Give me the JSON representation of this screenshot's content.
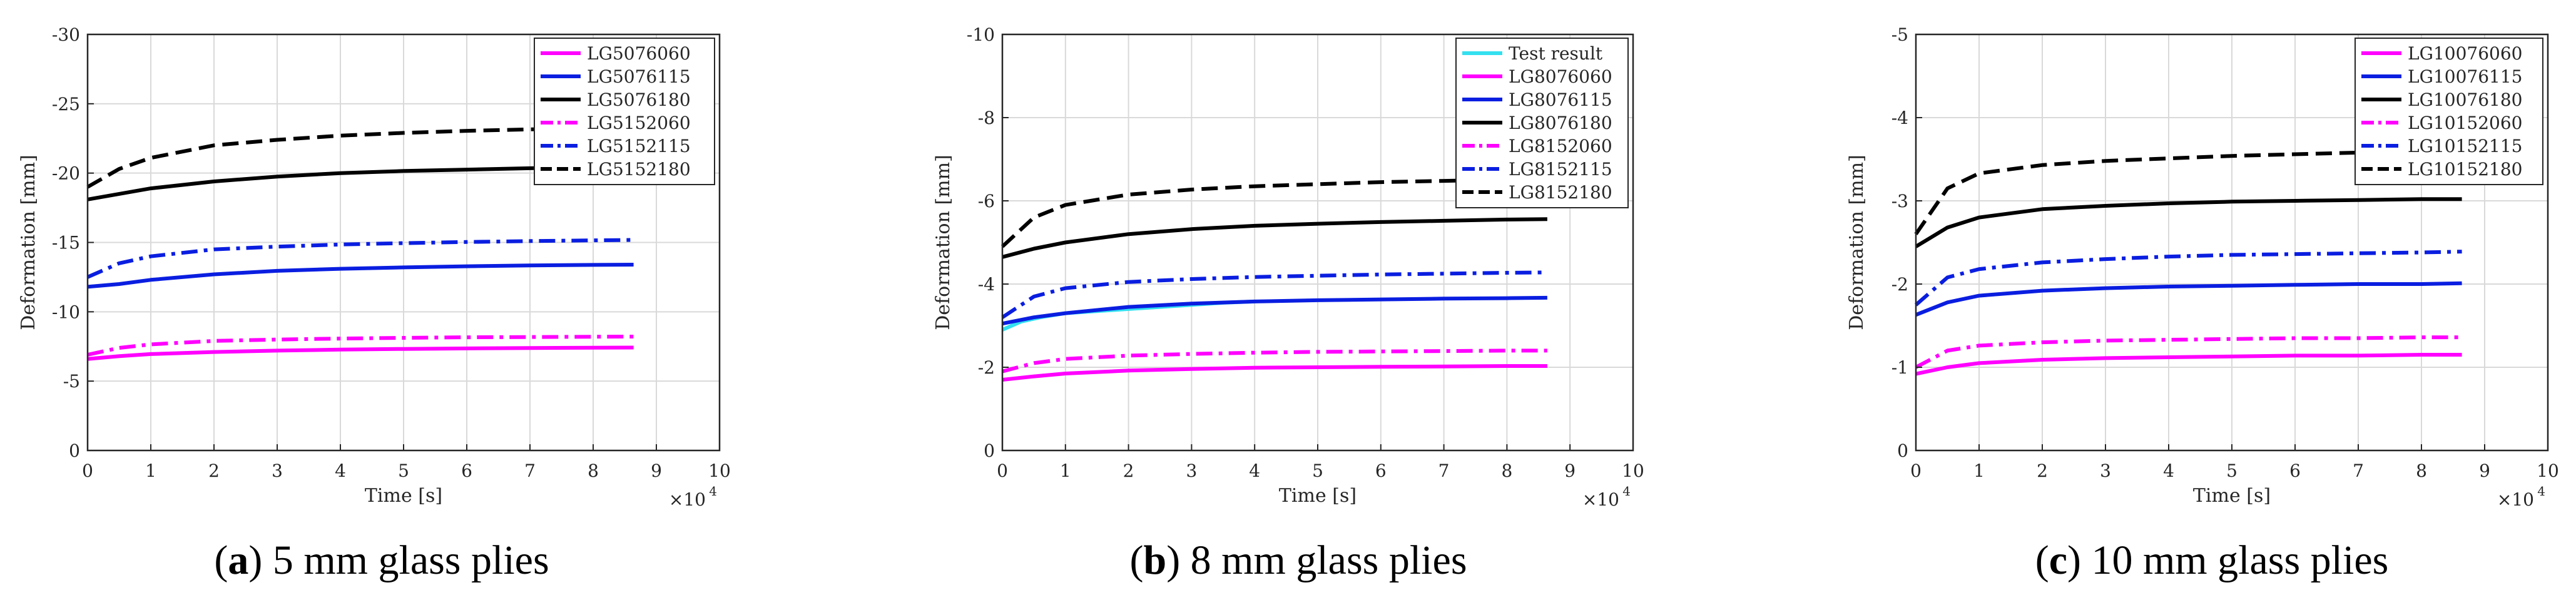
{
  "colors": {
    "magenta": "#ff00ff",
    "blue": "#0a1ee0",
    "black": "#000000",
    "cyan": "#33e0f0",
    "grid": "#d9d9d9",
    "axis": "#262626"
  },
  "chart_data": [
    {
      "type": "line",
      "caption": {
        "label": "a",
        "text": "5 mm glass plies"
      },
      "xlabel": "Time [s]",
      "ylabel": "Deformation [mm]",
      "x_exponent_label": "×10",
      "x_exponent_power": "4",
      "xlim": [
        0,
        10
      ],
      "ylim": [
        0,
        -30
      ],
      "xticks": [
        0,
        1,
        2,
        3,
        4,
        5,
        6,
        7,
        8,
        9,
        10
      ],
      "yticks": [
        0,
        -5,
        -10,
        -15,
        -20,
        -25,
        -30
      ],
      "grid": true,
      "legend_position": "top-right",
      "series": [
        {
          "name": "LG5076060",
          "color": "magenta",
          "style": "solid",
          "x": [
            0,
            0.5,
            1,
            2,
            3,
            4,
            5,
            6,
            7,
            8,
            8.64
          ],
          "y": [
            -6.6,
            -6.8,
            -6.95,
            -7.1,
            -7.2,
            -7.27,
            -7.32,
            -7.36,
            -7.39,
            -7.41,
            -7.42
          ]
        },
        {
          "name": "LG5076115",
          "color": "blue",
          "style": "solid",
          "x": [
            0,
            0.5,
            1,
            2,
            3,
            4,
            5,
            6,
            7,
            8,
            8.64
          ],
          "y": [
            -11.8,
            -12.0,
            -12.3,
            -12.7,
            -12.95,
            -13.1,
            -13.2,
            -13.28,
            -13.34,
            -13.38,
            -13.4
          ]
        },
        {
          "name": "LG5076180",
          "color": "black",
          "style": "solid",
          "x": [
            0,
            0.5,
            1,
            2,
            3,
            4,
            5,
            6,
            7,
            8,
            8.64
          ],
          "y": [
            -18.1,
            -18.5,
            -18.9,
            -19.4,
            -19.75,
            -20.0,
            -20.15,
            -20.25,
            -20.35,
            -20.42,
            -20.45
          ]
        },
        {
          "name": "LG5152060",
          "color": "magenta",
          "style": "dashdot",
          "x": [
            0,
            0.5,
            1,
            2,
            3,
            4,
            5,
            6,
            7,
            8,
            8.64
          ],
          "y": [
            -6.9,
            -7.4,
            -7.65,
            -7.9,
            -8.0,
            -8.07,
            -8.12,
            -8.16,
            -8.18,
            -8.2,
            -8.21
          ]
        },
        {
          "name": "LG5152115",
          "color": "blue",
          "style": "dashdot",
          "x": [
            0,
            0.5,
            1,
            2,
            3,
            4,
            5,
            6,
            7,
            8,
            8.64
          ],
          "y": [
            -12.5,
            -13.5,
            -14.0,
            -14.5,
            -14.7,
            -14.85,
            -14.95,
            -15.03,
            -15.1,
            -15.15,
            -15.18
          ]
        },
        {
          "name": "LG5152180",
          "color": "black",
          "style": "dashed",
          "x": [
            0,
            0.5,
            1,
            2,
            3,
            4,
            5,
            6,
            7,
            8,
            8.64
          ],
          "y": [
            -19.0,
            -20.3,
            -21.1,
            -22.0,
            -22.4,
            -22.7,
            -22.9,
            -23.05,
            -23.15,
            -23.22,
            -23.25
          ]
        }
      ]
    },
    {
      "type": "line",
      "caption": {
        "label": "b",
        "text": "8 mm glass plies"
      },
      "xlabel": "Time [s]",
      "ylabel": "Deformation [mm]",
      "x_exponent_label": "×10",
      "x_exponent_power": "4",
      "xlim": [
        0,
        10
      ],
      "ylim": [
        0,
        -10
      ],
      "xticks": [
        0,
        1,
        2,
        3,
        4,
        5,
        6,
        7,
        8,
        9,
        10
      ],
      "yticks": [
        0,
        -2,
        -4,
        -6,
        -8,
        -10
      ],
      "grid": true,
      "legend_position": "top-right",
      "series": [
        {
          "name": "Test result",
          "color": "cyan",
          "style": "solid",
          "x": [
            0,
            0.3,
            0.6,
            1,
            1.5,
            2,
            2.5,
            3,
            3.5,
            4
          ],
          "y": [
            -2.9,
            -3.1,
            -3.2,
            -3.3,
            -3.35,
            -3.4,
            -3.45,
            -3.5,
            -3.55,
            -3.58
          ]
        },
        {
          "name": "LG8076060",
          "color": "magenta",
          "style": "solid",
          "x": [
            0,
            0.5,
            1,
            2,
            3,
            4,
            5,
            6,
            7,
            8,
            8.64
          ],
          "y": [
            -1.7,
            -1.78,
            -1.85,
            -1.92,
            -1.96,
            -1.99,
            -2.0,
            -2.01,
            -2.02,
            -2.03,
            -2.03
          ]
        },
        {
          "name": "LG8076115",
          "color": "blue",
          "style": "solid",
          "x": [
            0,
            0.5,
            1,
            2,
            3,
            4,
            5,
            6,
            7,
            8,
            8.64
          ],
          "y": [
            -3.05,
            -3.2,
            -3.3,
            -3.45,
            -3.53,
            -3.58,
            -3.61,
            -3.63,
            -3.65,
            -3.66,
            -3.67
          ]
        },
        {
          "name": "LG8076180",
          "color": "black",
          "style": "solid",
          "x": [
            0,
            0.5,
            1,
            2,
            3,
            4,
            5,
            6,
            7,
            8,
            8.64
          ],
          "y": [
            -4.65,
            -4.85,
            -5.0,
            -5.2,
            -5.32,
            -5.4,
            -5.45,
            -5.49,
            -5.52,
            -5.55,
            -5.56
          ]
        },
        {
          "name": "LG8152060",
          "color": "magenta",
          "style": "dashdot",
          "x": [
            0,
            0.5,
            1,
            2,
            3,
            4,
            5,
            6,
            7,
            8,
            8.64
          ],
          "y": [
            -1.9,
            -2.1,
            -2.2,
            -2.28,
            -2.32,
            -2.35,
            -2.37,
            -2.38,
            -2.39,
            -2.4,
            -2.4
          ]
        },
        {
          "name": "LG8152115",
          "color": "blue",
          "style": "dashdot",
          "x": [
            0,
            0.5,
            1,
            2,
            3,
            4,
            5,
            6,
            7,
            8,
            8.64
          ],
          "y": [
            -3.2,
            -3.7,
            -3.9,
            -4.05,
            -4.12,
            -4.17,
            -4.2,
            -4.23,
            -4.25,
            -4.27,
            -4.28
          ]
        },
        {
          "name": "LG8152180",
          "color": "black",
          "style": "dashed",
          "x": [
            0,
            0.5,
            1,
            2,
            3,
            4,
            5,
            6,
            7,
            8,
            8.64
          ],
          "y": [
            -4.9,
            -5.6,
            -5.9,
            -6.15,
            -6.27,
            -6.35,
            -6.4,
            -6.45,
            -6.48,
            -6.51,
            -6.52
          ]
        }
      ]
    },
    {
      "type": "line",
      "caption": {
        "label": "c",
        "text": "10 mm glass plies"
      },
      "xlabel": "Time [s]",
      "ylabel": "Deformation [mm]",
      "x_exponent_label": "×10",
      "x_exponent_power": "4",
      "xlim": [
        0,
        10
      ],
      "ylim": [
        0,
        -5
      ],
      "xticks": [
        0,
        1,
        2,
        3,
        4,
        5,
        6,
        7,
        8,
        9,
        10
      ],
      "yticks": [
        0,
        -1,
        -2,
        -3,
        -4,
        -5
      ],
      "grid": true,
      "legend_position": "top-right",
      "series": [
        {
          "name": "LG10076060",
          "color": "magenta",
          "style": "solid",
          "x": [
            0,
            0.5,
            1,
            2,
            3,
            4,
            5,
            6,
            7,
            8,
            8.64
          ],
          "y": [
            -0.92,
            -1.0,
            -1.05,
            -1.09,
            -1.11,
            -1.12,
            -1.13,
            -1.14,
            -1.14,
            -1.15,
            -1.15
          ]
        },
        {
          "name": "LG10076115",
          "color": "blue",
          "style": "solid",
          "x": [
            0,
            0.5,
            1,
            2,
            3,
            4,
            5,
            6,
            7,
            8,
            8.64
          ],
          "y": [
            -1.63,
            -1.78,
            -1.86,
            -1.92,
            -1.95,
            -1.97,
            -1.98,
            -1.99,
            -2.0,
            -2.0,
            -2.01
          ]
        },
        {
          "name": "LG10076180",
          "color": "black",
          "style": "solid",
          "x": [
            0,
            0.5,
            1,
            2,
            3,
            4,
            5,
            6,
            7,
            8,
            8.64
          ],
          "y": [
            -2.45,
            -2.68,
            -2.8,
            -2.9,
            -2.94,
            -2.97,
            -2.99,
            -3.0,
            -3.01,
            -3.02,
            -3.02
          ]
        },
        {
          "name": "LG10152060",
          "color": "magenta",
          "style": "dashdot",
          "x": [
            0,
            0.5,
            1,
            2,
            3,
            4,
            5,
            6,
            7,
            8,
            8.64
          ],
          "y": [
            -1.0,
            -1.2,
            -1.26,
            -1.3,
            -1.32,
            -1.33,
            -1.34,
            -1.35,
            -1.35,
            -1.36,
            -1.36
          ]
        },
        {
          "name": "LG10152115",
          "color": "blue",
          "style": "dashdot",
          "x": [
            0,
            0.5,
            1,
            2,
            3,
            4,
            5,
            6,
            7,
            8,
            8.64
          ],
          "y": [
            -1.75,
            -2.08,
            -2.18,
            -2.26,
            -2.3,
            -2.33,
            -2.35,
            -2.36,
            -2.37,
            -2.38,
            -2.39
          ]
        },
        {
          "name": "LG10152180",
          "color": "black",
          "style": "dashed",
          "x": [
            0,
            0.5,
            1,
            2,
            3,
            4,
            5,
            6,
            7,
            8,
            8.64
          ],
          "y": [
            -2.6,
            -3.15,
            -3.33,
            -3.43,
            -3.48,
            -3.51,
            -3.54,
            -3.56,
            -3.58,
            -3.59,
            -3.6
          ]
        }
      ]
    }
  ]
}
